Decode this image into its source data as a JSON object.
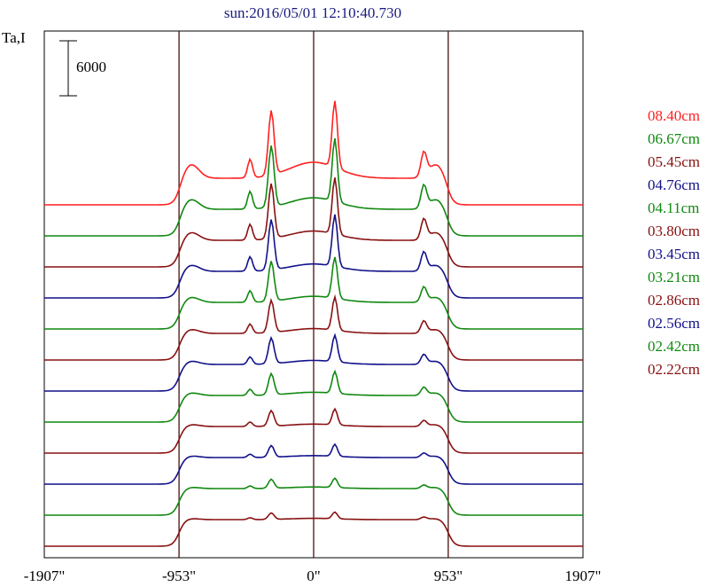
{
  "chart_data": {
    "type": "line",
    "title": "sun:2016/05/01 12:10:40.730",
    "ylabel": "Ta,I",
    "scale_bar_label": "6000",
    "xlim": [
      -1907,
      1907
    ],
    "x_ticks": [
      {
        "value": -1907,
        "label": "-1907\""
      },
      {
        "value": -953,
        "label": "-953\""
      },
      {
        "value": 0,
        "label": "0\""
      },
      {
        "value": 953,
        "label": "953\""
      },
      {
        "value": 1907,
        "label": "1907\""
      }
    ],
    "vertical_lines": [
      -953,
      0,
      953
    ],
    "x_offset": 0.36,
    "series": [
      {
        "name": "08.40cm",
        "color": "#ff2020",
        "peak": 1.0,
        "limb": 1.0
      },
      {
        "name": "06.67cm",
        "color": "#118811",
        "peak": 0.95,
        "limb": 0.72
      },
      {
        "name": "05.45cm",
        "color": "#881111",
        "peak": 0.85,
        "limb": 0.58
      },
      {
        "name": "04.76cm",
        "color": "#11118a",
        "peak": 0.78,
        "limb": 0.46
      },
      {
        "name": "04.11cm",
        "color": "#118811",
        "peak": 0.62,
        "limb": 0.38
      },
      {
        "name": "03.80cm",
        "color": "#881111",
        "peak": 0.5,
        "limb": 0.3
      },
      {
        "name": "03.45cm",
        "color": "#11118a",
        "peak": 0.4,
        "limb": 0.25
      },
      {
        "name": "03.21cm",
        "color": "#118811",
        "peak": 0.33,
        "limb": 0.2
      },
      {
        "name": "02.86cm",
        "color": "#881111",
        "peak": 0.24,
        "limb": 0.15
      },
      {
        "name": "02.56cm",
        "color": "#11118a",
        "peak": 0.18,
        "limb": 0.12
      },
      {
        "name": "02.42cm",
        "color": "#118811",
        "peak": 0.14,
        "limb": 0.1
      },
      {
        "name": "02.22cm",
        "color": "#881111",
        "peak": 0.1,
        "limb": 0.08
      }
    ]
  }
}
